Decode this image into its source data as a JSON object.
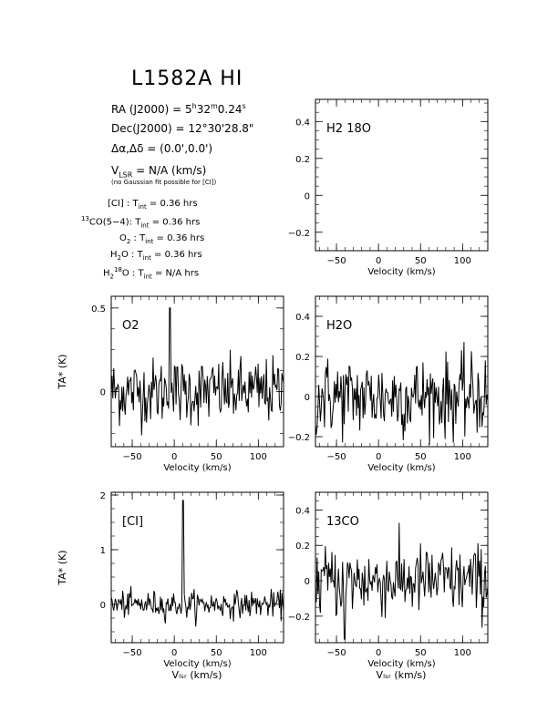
{
  "header": {
    "title": "L1582A HI",
    "ra": "RA (J2000) = 5h32m0.24s",
    "dec": "Dec(J2000) = 12°30'28.8\"",
    "offset": "Δα,Δδ = (0.0',0.0')",
    "vlsr": "VLSR = N/A (km/s)",
    "note": "(no Gaussian fit possible for [CI])",
    "integrations": [
      {
        "line": "[CI]",
        "tint": "0.36 hrs"
      },
      {
        "line": "13CO(5-4)",
        "tint": "0.36 hrs"
      },
      {
        "line": "O2",
        "tint": "0.36 hrs"
      },
      {
        "line": "H2O",
        "tint": "0.36 hrs"
      },
      {
        "line": "H2 18O",
        "tint": "N/A hrs"
      }
    ]
  },
  "chart_data": [
    {
      "type": "line",
      "panel": "H2 18O",
      "label": "H2 18O",
      "xlabel": "Velocity (km/s)",
      "ylabel": "",
      "xlim": [
        -75,
        130
      ],
      "ylim": [
        -0.3,
        0.52
      ],
      "yticks": [
        -0.2,
        0,
        0.2,
        0.4
      ],
      "xticks": [
        -50,
        0,
        50,
        100
      ],
      "series": []
    },
    {
      "type": "line",
      "panel": "O2",
      "label": "O2",
      "xlabel": "Velocity (km/s)",
      "ylabel": "TA* (K)",
      "xlim": [
        -75,
        130
      ],
      "ylim": [
        -0.33,
        0.57
      ],
      "yticks": [
        0,
        0.5
      ],
      "xticks": [
        -50,
        0,
        50,
        100
      ],
      "noise": 0.1,
      "peaks": [
        {
          "x": -5,
          "y": 0.5
        }
      ]
    },
    {
      "type": "line",
      "panel": "H2O",
      "label": "H2O",
      "xlabel": "Velocity (km/s)",
      "ylabel": "",
      "xlim": [
        -75,
        130
      ],
      "ylim": [
        -0.25,
        0.5
      ],
      "yticks": [
        -0.2,
        0,
        0.2,
        0.4
      ],
      "xticks": [
        -50,
        0,
        50,
        100
      ],
      "noise": 0.1
    },
    {
      "type": "line",
      "panel": "[CI]",
      "label": "[CI]",
      "xlabel": "Velocity (km/s)",
      "ylabel": "TA* (K)",
      "xlim": [
        -75,
        130
      ],
      "ylim": [
        -0.7,
        2.05
      ],
      "yticks": [
        0,
        1,
        2
      ],
      "xticks": [
        -50,
        0,
        50,
        100
      ],
      "noise": 0.12,
      "peaks": [
        {
          "x": 10,
          "y": 1.9
        }
      ]
    },
    {
      "type": "line",
      "panel": "13CO",
      "label": "13CO",
      "xlabel": "Velocity (km/s)",
      "ylabel": "",
      "xlim": [
        -75,
        130
      ],
      "ylim": [
        -0.35,
        0.5
      ],
      "yticks": [
        -0.2,
        0,
        0.2,
        0.4
      ],
      "xticks": [
        -50,
        0,
        50,
        100
      ],
      "noise": 0.1,
      "peaks": [
        {
          "x": -40,
          "y": -0.33
        }
      ]
    }
  ],
  "bottom_axis_labels": {
    "left": "VLSR (km/s)",
    "right": "VLSR (km/s)"
  }
}
